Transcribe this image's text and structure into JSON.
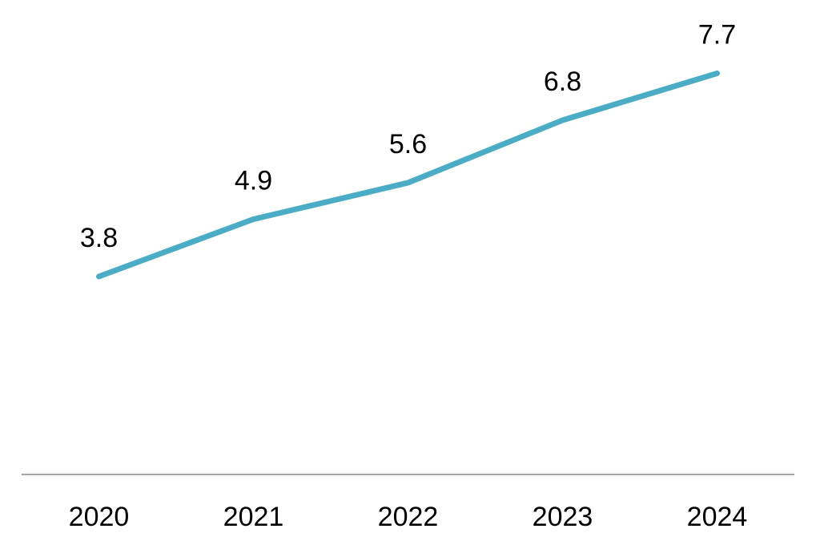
{
  "chart_data": {
    "type": "line",
    "categories": [
      "2020",
      "2021",
      "2022",
      "2023",
      "2024"
    ],
    "series": [
      {
        "values": [
          3.8,
          4.9,
          5.6,
          6.8,
          7.7
        ],
        "color": "#4bacc6"
      }
    ],
    "data_labels": [
      "3.8",
      "4.9",
      "5.6",
      "6.8",
      "7.7"
    ],
    "title": "",
    "xlabel": "",
    "ylabel": "",
    "ylim": [
      0,
      9
    ],
    "grid": false,
    "legend": "none",
    "axis_color": "#a6a6a6",
    "text_color": "#000000"
  }
}
